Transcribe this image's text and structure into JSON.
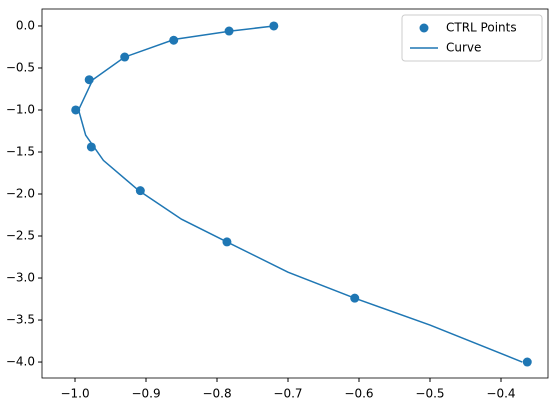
{
  "chart_data": {
    "type": "scatter-line",
    "legend": "upper right",
    "xlim": [
      -1.0465,
      -0.3338
    ],
    "ylim": [
      -4.19,
      0.202
    ],
    "xticks": [
      {
        "value": -1.0,
        "label": "−1.0"
      },
      {
        "value": -0.9,
        "label": "−0.9"
      },
      {
        "value": -0.8,
        "label": "−0.8"
      },
      {
        "value": -0.7,
        "label": "−0.7"
      },
      {
        "value": -0.6,
        "label": "−0.6"
      },
      {
        "value": -0.5,
        "label": "−0.5"
      },
      {
        "value": -0.4,
        "label": "−0.4"
      }
    ],
    "yticks": [
      {
        "value": 0,
        "label": "0.0"
      },
      {
        "value": -0.5,
        "label": "−0.5"
      },
      {
        "value": -1.0,
        "label": "−1.0"
      },
      {
        "value": -1.5,
        "label": "−1.5"
      },
      {
        "value": -2.0,
        "label": "−2.0"
      },
      {
        "value": -2.5,
        "label": "−2.5"
      },
      {
        "value": -3.0,
        "label": "−3.0"
      },
      {
        "value": -3.5,
        "label": "−3.5"
      },
      {
        "value": -4.0,
        "label": "−4.0"
      }
    ],
    "series": [
      {
        "name": "CTRL Points",
        "kind": "scatter",
        "color": "#1f77b4",
        "x": [
          -0.72,
          -0.783,
          -0.861,
          -0.93,
          -0.98,
          -0.999,
          -0.977,
          -0.908,
          -0.786,
          -0.606,
          -0.363
        ],
        "values": [
          0,
          -0.06,
          -0.17,
          -0.37,
          -0.64,
          -1.0,
          -1.44,
          -1.96,
          -2.57,
          -3.24,
          -4.0
        ]
      },
      {
        "name": "Curve",
        "kind": "line",
        "color": "#1f77b4",
        "x": [
          -0.72,
          -0.78,
          -0.86,
          -0.93,
          -0.975,
          -0.995,
          -0.985,
          -0.96,
          -0.91,
          -0.85,
          -0.786,
          -0.7,
          -0.606,
          -0.5,
          -0.37
        ],
        "values": [
          0,
          -0.06,
          -0.16,
          -0.37,
          -0.64,
          -1.0,
          -1.3,
          -1.6,
          -1.96,
          -2.3,
          -2.57,
          -2.93,
          -3.24,
          -3.56,
          -4.0
        ]
      }
    ]
  }
}
